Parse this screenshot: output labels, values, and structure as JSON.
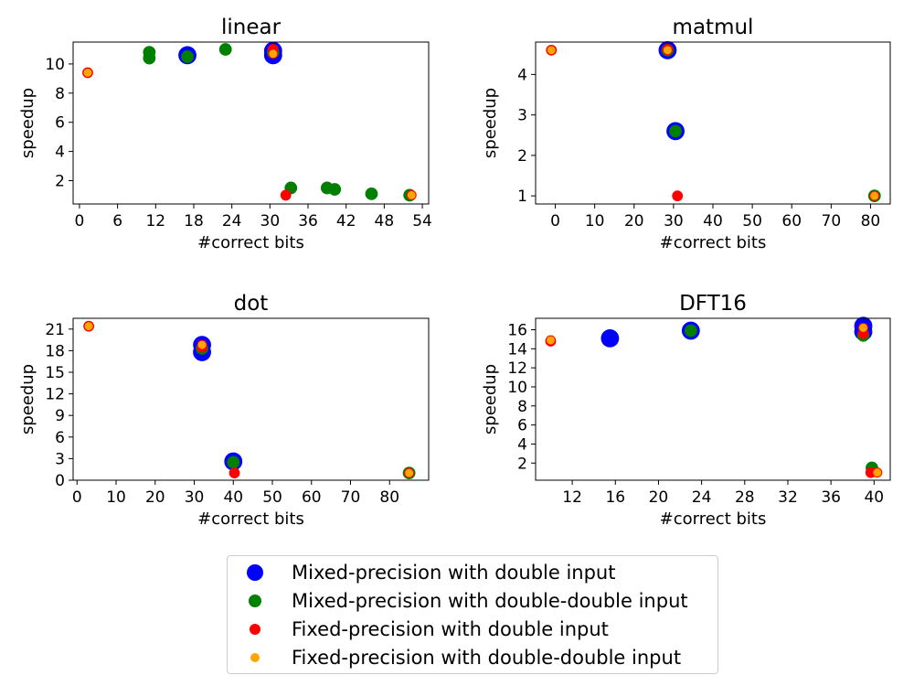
{
  "colors": {
    "mixed_double": "#0000ff",
    "mixed_dd": "#008000",
    "fixed_double": "#ff0000",
    "fixed_dd": "#ffa500"
  },
  "legend": [
    {
      "label": "Mixed-precision with double input",
      "color": "#0000ff",
      "marker": "large-circle"
    },
    {
      "label": "Mixed-precision with double-double input",
      "color": "#008000",
      "marker": "medium-circle"
    },
    {
      "label": "Fixed-precision with double input",
      "color": "#ff0000",
      "marker": "small-circle"
    },
    {
      "label": "Fixed-precision with double-double input",
      "color": "#ffa500",
      "marker": "small-circle"
    }
  ],
  "chart_data": [
    {
      "type": "scatter",
      "title": "linear",
      "xlabel": "#correct bits",
      "ylabel": "speedup",
      "xlim": [
        -1,
        55
      ],
      "ylim": [
        0.4,
        11.5
      ],
      "xticks": [
        0,
        6,
        12,
        18,
        24,
        30,
        36,
        42,
        48,
        54
      ],
      "yticks": [
        2,
        4,
        6,
        8,
        10
      ],
      "grid": false,
      "series": [
        {
          "name": "Mixed-precision with double input",
          "points": [
            [
              17,
              10.6
            ],
            [
              30.5,
              10.9
            ],
            [
              30.5,
              10.6
            ]
          ]
        },
        {
          "name": "Mixed-precision with double-double input",
          "points": [
            [
              11,
              10.8
            ],
            [
              11,
              10.4
            ],
            [
              17,
              10.5
            ],
            [
              23,
              11.0
            ],
            [
              30.5,
              10.8
            ],
            [
              33.3,
              1.5
            ],
            [
              39,
              1.5
            ],
            [
              40.2,
              1.4
            ],
            [
              46,
              1.1
            ],
            [
              52,
              1.0
            ]
          ]
        },
        {
          "name": "Fixed-precision with double input",
          "points": [
            [
              1.3,
              9.4
            ],
            [
              30.5,
              11.0
            ],
            [
              32.5,
              1.0
            ]
          ]
        },
        {
          "name": "Fixed-precision with double-double input",
          "points": [
            [
              1.3,
              9.4
            ],
            [
              30.5,
              10.7
            ],
            [
              52.3,
              1.0
            ]
          ]
        }
      ]
    },
    {
      "type": "scatter",
      "title": "matmul",
      "xlabel": "#correct bits",
      "ylabel": "speedup",
      "xlim": [
        -5,
        85
      ],
      "ylim": [
        0.8,
        4.8
      ],
      "xticks": [
        0,
        10,
        20,
        30,
        40,
        50,
        60,
        70,
        80
      ],
      "yticks": [
        1,
        2,
        3,
        4
      ],
      "grid": false,
      "series": [
        {
          "name": "Mixed-precision with double input",
          "points": [
            [
              28.5,
              4.6
            ],
            [
              30.5,
              2.6
            ]
          ]
        },
        {
          "name": "Mixed-precision with double-double input",
          "points": [
            [
              28.5,
              4.6
            ],
            [
              30.5,
              2.6
            ],
            [
              81,
              1.0
            ]
          ]
        },
        {
          "name": "Fixed-precision with double input",
          "points": [
            [
              -1,
              4.6
            ],
            [
              28.5,
              4.62
            ],
            [
              31,
              1.0
            ]
          ]
        },
        {
          "name": "Fixed-precision with double-double input",
          "points": [
            [
              -1,
              4.6
            ],
            [
              28.5,
              4.6
            ],
            [
              81,
              1.0
            ]
          ]
        }
      ]
    },
    {
      "type": "scatter",
      "title": "dot",
      "xlabel": "#correct bits",
      "ylabel": "speedup",
      "xlim": [
        -1,
        90
      ],
      "ylim": [
        0,
        22.5
      ],
      "xticks": [
        0,
        10,
        20,
        30,
        40,
        50,
        60,
        70,
        80
      ],
      "yticks": [
        0,
        3,
        6,
        9,
        12,
        15,
        18,
        21
      ],
      "grid": false,
      "series": [
        {
          "name": "Mixed-precision with double input",
          "points": [
            [
              32,
              18.8
            ],
            [
              32,
              17.8
            ],
            [
              40,
              2.6
            ]
          ]
        },
        {
          "name": "Mixed-precision with double-double input",
          "points": [
            [
              32,
              18.3
            ],
            [
              40,
              2.5
            ],
            [
              85,
              1.0
            ]
          ]
        },
        {
          "name": "Fixed-precision with double input",
          "points": [
            [
              3,
              21.4
            ],
            [
              32,
              18.5
            ],
            [
              40.3,
              1.0
            ]
          ]
        },
        {
          "name": "Fixed-precision with double-double input",
          "points": [
            [
              3,
              21.4
            ],
            [
              32,
              18.8
            ],
            [
              85,
              1.0
            ]
          ]
        }
      ]
    },
    {
      "type": "scatter",
      "title": "DFT16",
      "xlabel": "#correct bits",
      "ylabel": "speedup",
      "xlim": [
        8.6,
        41.5
      ],
      "ylim": [
        0.2,
        17.2
      ],
      "xticks": [
        12,
        16,
        20,
        24,
        28,
        32,
        36,
        40
      ],
      "yticks": [
        2,
        4,
        6,
        8,
        10,
        12,
        14,
        16
      ],
      "grid": false,
      "series": [
        {
          "name": "Mixed-precision with double input",
          "points": [
            [
              15.5,
              15.1
            ],
            [
              23,
              15.9
            ],
            [
              39,
              16.4
            ],
            [
              39,
              15.8
            ]
          ]
        },
        {
          "name": "Mixed-precision with double-double input",
          "points": [
            [
              23,
              15.9
            ],
            [
              39,
              15.4
            ],
            [
              39.8,
              1.5
            ]
          ]
        },
        {
          "name": "Fixed-precision with double input",
          "points": [
            [
              10,
              14.8
            ],
            [
              39,
              15.6
            ],
            [
              39.7,
              1.0
            ]
          ]
        },
        {
          "name": "Fixed-precision with double-double input",
          "points": [
            [
              10,
              14.9
            ],
            [
              39,
              16.2
            ],
            [
              40.3,
              1.0
            ]
          ]
        }
      ]
    }
  ]
}
